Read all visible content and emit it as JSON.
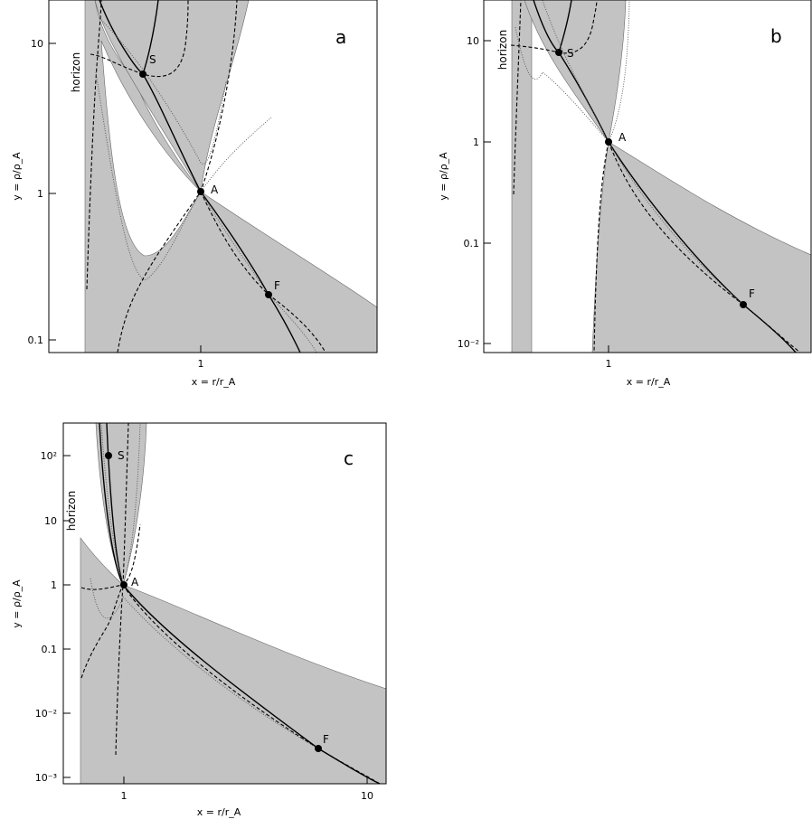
{
  "chart_data": [
    {
      "type": "line",
      "panel_label": "a",
      "xlabel": "x = r/r_A",
      "ylabel": "y = ρ/ρ_A",
      "x_scale": "log",
      "y_scale": "log",
      "xlim": [
        0.6,
        1.8
      ],
      "ylim": [
        0.08,
        20
      ],
      "x_ticks": [
        {
          "value": 1,
          "label": "1"
        }
      ],
      "y_ticks": [
        {
          "value": 0.1,
          "label": "0.1"
        },
        {
          "value": 1,
          "label": "1"
        },
        {
          "value": 10,
          "label": "10"
        }
      ],
      "horizon_label": "horizon",
      "horizon_x": 0.6,
      "critical_points": [
        {
          "name": "S",
          "x": 0.83,
          "y": 6.5
        },
        {
          "name": "A",
          "x": 1.0,
          "y": 1.0
        },
        {
          "name": "F",
          "x": 1.42,
          "y": 0.2
        }
      ]
    },
    {
      "type": "line",
      "panel_label": "b",
      "xlabel": "x = r/r_A",
      "ylabel": "y = ρ/ρ_A",
      "x_scale": "log",
      "y_scale": "log",
      "xlim": [
        0.65,
        1.6
      ],
      "ylim": [
        0.008,
        25
      ],
      "x_ticks": [
        {
          "value": 1,
          "label": "1"
        }
      ],
      "y_ticks": [
        {
          "value": 0.01,
          "label": "10⁻²"
        },
        {
          "value": 0.1,
          "label": "0.1"
        },
        {
          "value": 1,
          "label": "1"
        },
        {
          "value": 10,
          "label": "10"
        }
      ],
      "horizon_label": "horizon",
      "horizon_x": 0.7,
      "critical_points": [
        {
          "name": "S",
          "x": 0.87,
          "y": 7.7
        },
        {
          "name": "A",
          "x": 1.0,
          "y": 1.0
        },
        {
          "name": "F",
          "x": 1.38,
          "y": 0.025
        }
      ]
    },
    {
      "type": "line",
      "panel_label": "c",
      "xlabel": "x = r/r_A",
      "ylabel": "y = ρ/ρ_A",
      "x_scale": "log",
      "y_scale": "log",
      "xlim": [
        0.55,
        12
      ],
      "ylim": [
        0.0008,
        300
      ],
      "x_ticks": [
        {
          "value": 1,
          "label": "1"
        },
        {
          "value": 10,
          "label": "10"
        }
      ],
      "y_ticks": [
        {
          "value": 0.001,
          "label": "10⁻³"
        },
        {
          "value": 0.01,
          "label": "10⁻²"
        },
        {
          "value": 0.1,
          "label": "0.1"
        },
        {
          "value": 1,
          "label": "1"
        },
        {
          "value": 10,
          "label": "10"
        },
        {
          "value": 100,
          "label": "10²"
        }
      ],
      "horizon_label": "horizon",
      "horizon_x": 0.68,
      "critical_points": [
        {
          "name": "S",
          "x": 0.88,
          "y": 100
        },
        {
          "name": "A",
          "x": 1.0,
          "y": 1.0
        },
        {
          "name": "F",
          "x": 6.4,
          "y": 0.0028
        }
      ]
    }
  ]
}
